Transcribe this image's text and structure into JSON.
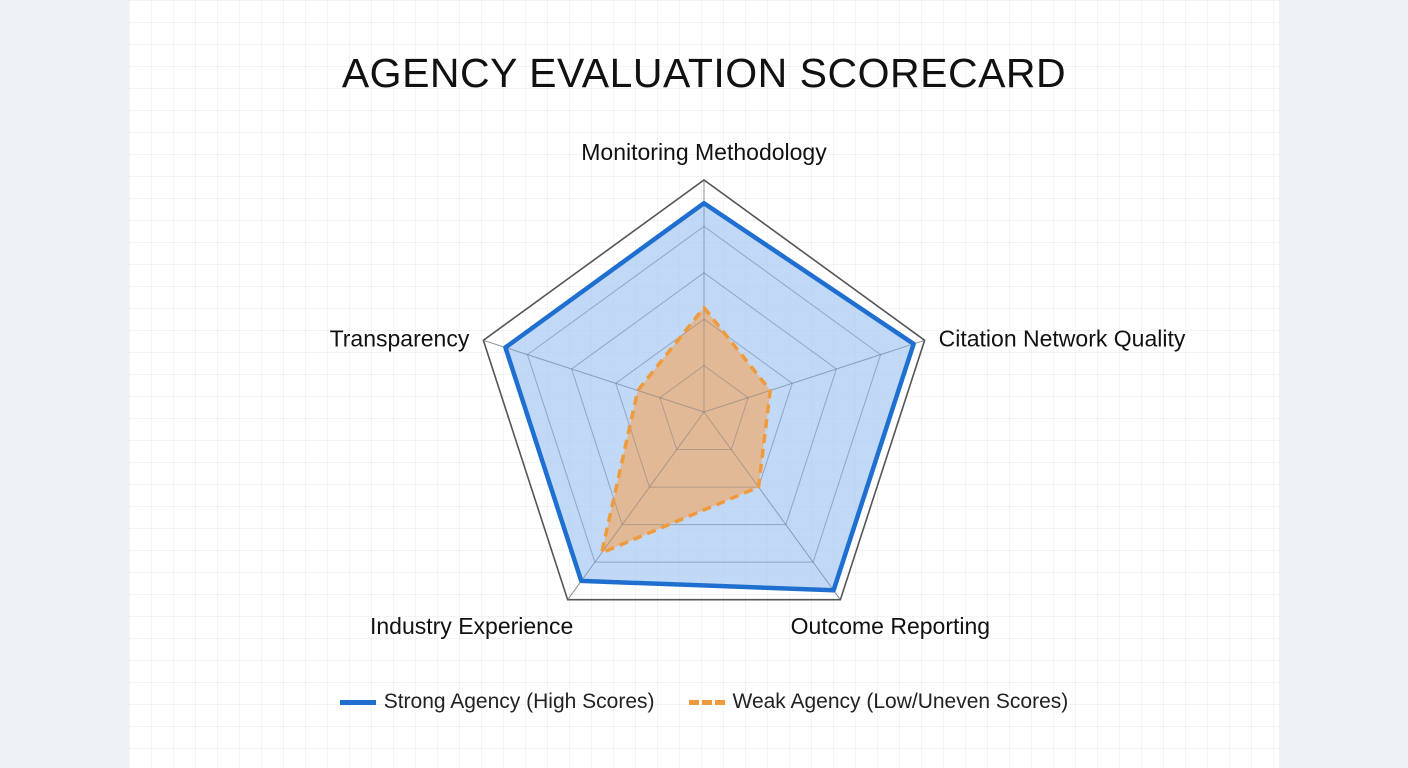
{
  "chart_data": {
    "type": "radar",
    "title": "AGENCY EVALUATION SCORECARD",
    "axes": [
      "Monitoring Methodology",
      "Citation Network Quality",
      "Outcome Reporting",
      "Industry Experience",
      "Transparency"
    ],
    "scale": [
      0,
      10
    ],
    "grid_levels": 5,
    "grid": true,
    "legend_position": "bottom",
    "series": [
      {
        "name": "Strong Agency (High Scores)",
        "values": [
          9,
          9.5,
          9.5,
          9,
          9
        ],
        "color": "#1f6fd1",
        "fill": "#a9cbf3",
        "line_style": "solid"
      },
      {
        "name": "Weak Agency (Low/Uneven Scores)",
        "values": [
          4.5,
          3,
          4,
          7.5,
          3
        ],
        "color": "#ef9a3c",
        "fill": "#e8b07e",
        "line_style": "dashed"
      }
    ]
  }
}
